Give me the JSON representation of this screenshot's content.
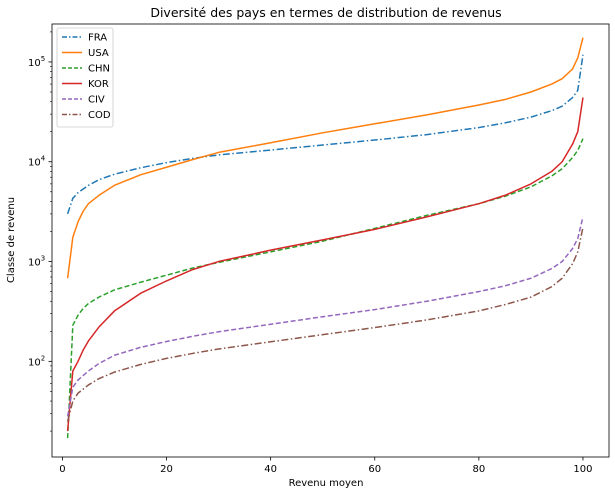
{
  "chart_data": {
    "type": "line",
    "title": "Diversité des pays en termes de distribution de revenus",
    "xlabel": "Revenu moyen",
    "ylabel": "Classe de revenu",
    "xlim": [
      -2,
      105
    ],
    "ylim": [
      11,
      240000
    ],
    "yscale": "log",
    "grid": false,
    "legend": "top-left",
    "x_ticks": [
      0,
      20,
      40,
      60,
      80,
      100
    ],
    "y_ticks": [
      {
        "value": 100,
        "base": "10",
        "exp": "2"
      },
      {
        "value": 1000,
        "base": "10",
        "exp": "3"
      },
      {
        "value": 10000,
        "base": "10",
        "exp": "4"
      },
      {
        "value": 100000,
        "base": "10",
        "exp": "5"
      }
    ],
    "series": [
      {
        "name": "FRA",
        "color": "#1f77b4",
        "style": "dashdot",
        "points": [
          [
            1,
            3000
          ],
          [
            2,
            4300
          ],
          [
            3,
            4900
          ],
          [
            5,
            5800
          ],
          [
            7,
            6600
          ],
          [
            10,
            7500
          ],
          [
            15,
            8700
          ],
          [
            20,
            9800
          ],
          [
            25,
            10800
          ],
          [
            30,
            11700
          ],
          [
            40,
            13100
          ],
          [
            50,
            14700
          ],
          [
            60,
            16500
          ],
          [
            70,
            18700
          ],
          [
            80,
            22000
          ],
          [
            85,
            24500
          ],
          [
            90,
            28000
          ],
          [
            94,
            32500
          ],
          [
            96,
            36000
          ],
          [
            98,
            44000
          ],
          [
            99,
            52000
          ],
          [
            100,
            118000
          ]
        ]
      },
      {
        "name": "USA",
        "color": "#ff7f0e",
        "style": "solid",
        "points": [
          [
            1,
            680
          ],
          [
            2,
            1750
          ],
          [
            3,
            2500
          ],
          [
            4,
            3200
          ],
          [
            5,
            3800
          ],
          [
            7,
            4600
          ],
          [
            10,
            5800
          ],
          [
            15,
            7400
          ],
          [
            20,
            8800
          ],
          [
            25,
            10500
          ],
          [
            30,
            12400
          ],
          [
            40,
            15500
          ],
          [
            50,
            19500
          ],
          [
            60,
            24000
          ],
          [
            70,
            29500
          ],
          [
            80,
            37000
          ],
          [
            85,
            42000
          ],
          [
            90,
            50000
          ],
          [
            94,
            60000
          ],
          [
            96,
            68000
          ],
          [
            98,
            85000
          ],
          [
            99,
            110000
          ],
          [
            100,
            175000
          ]
        ]
      },
      {
        "name": "CHN",
        "color": "#2ca02c",
        "style": "dashed",
        "points": [
          [
            1,
            17
          ],
          [
            2,
            230
          ],
          [
            3,
            290
          ],
          [
            4,
            340
          ],
          [
            5,
            380
          ],
          [
            7,
            440
          ],
          [
            10,
            520
          ],
          [
            15,
            620
          ],
          [
            20,
            730
          ],
          [
            25,
            860
          ],
          [
            30,
            980
          ],
          [
            40,
            1250
          ],
          [
            50,
            1600
          ],
          [
            60,
            2150
          ],
          [
            70,
            2900
          ],
          [
            80,
            3800
          ],
          [
            85,
            4500
          ],
          [
            90,
            5600
          ],
          [
            94,
            7200
          ],
          [
            96,
            8500
          ],
          [
            98,
            11000
          ],
          [
            99,
            13000
          ],
          [
            100,
            17000
          ]
        ]
      },
      {
        "name": "KOR",
        "color": "#d62728",
        "style": "solid",
        "points": [
          [
            1,
            20
          ],
          [
            2,
            80
          ],
          [
            3,
            100
          ],
          [
            4,
            130
          ],
          [
            5,
            160
          ],
          [
            7,
            220
          ],
          [
            10,
            320
          ],
          [
            15,
            480
          ],
          [
            20,
            640
          ],
          [
            25,
            830
          ],
          [
            30,
            1000
          ],
          [
            40,
            1300
          ],
          [
            50,
            1650
          ],
          [
            60,
            2100
          ],
          [
            70,
            2800
          ],
          [
            80,
            3800
          ],
          [
            85,
            4600
          ],
          [
            90,
            6000
          ],
          [
            94,
            8000
          ],
          [
            96,
            10000
          ],
          [
            98,
            15000
          ],
          [
            99,
            20000
          ],
          [
            100,
            44000
          ]
        ]
      },
      {
        "name": "CIV",
        "color": "#9467bd",
        "style": "dashed",
        "points": [
          [
            1,
            28
          ],
          [
            2,
            55
          ],
          [
            3,
            65
          ],
          [
            5,
            80
          ],
          [
            7,
            95
          ],
          [
            10,
            115
          ],
          [
            15,
            138
          ],
          [
            20,
            158
          ],
          [
            25,
            178
          ],
          [
            30,
            198
          ],
          [
            40,
            235
          ],
          [
            50,
            280
          ],
          [
            60,
            330
          ],
          [
            70,
            400
          ],
          [
            80,
            500
          ],
          [
            85,
            570
          ],
          [
            90,
            680
          ],
          [
            94,
            850
          ],
          [
            96,
            1000
          ],
          [
            98,
            1350
          ],
          [
            99,
            1700
          ],
          [
            100,
            2800
          ]
        ]
      },
      {
        "name": "COD",
        "color": "#8c564b",
        "style": "dashdot",
        "points": [
          [
            1,
            25
          ],
          [
            2,
            40
          ],
          [
            3,
            48
          ],
          [
            5,
            58
          ],
          [
            7,
            67
          ],
          [
            10,
            78
          ],
          [
            15,
            93
          ],
          [
            20,
            107
          ],
          [
            25,
            120
          ],
          [
            30,
            133
          ],
          [
            40,
            157
          ],
          [
            50,
            185
          ],
          [
            60,
            218
          ],
          [
            70,
            260
          ],
          [
            80,
            320
          ],
          [
            85,
            370
          ],
          [
            90,
            440
          ],
          [
            94,
            560
          ],
          [
            96,
            680
          ],
          [
            98,
            950
          ],
          [
            99,
            1250
          ],
          [
            100,
            2200
          ]
        ]
      }
    ]
  }
}
